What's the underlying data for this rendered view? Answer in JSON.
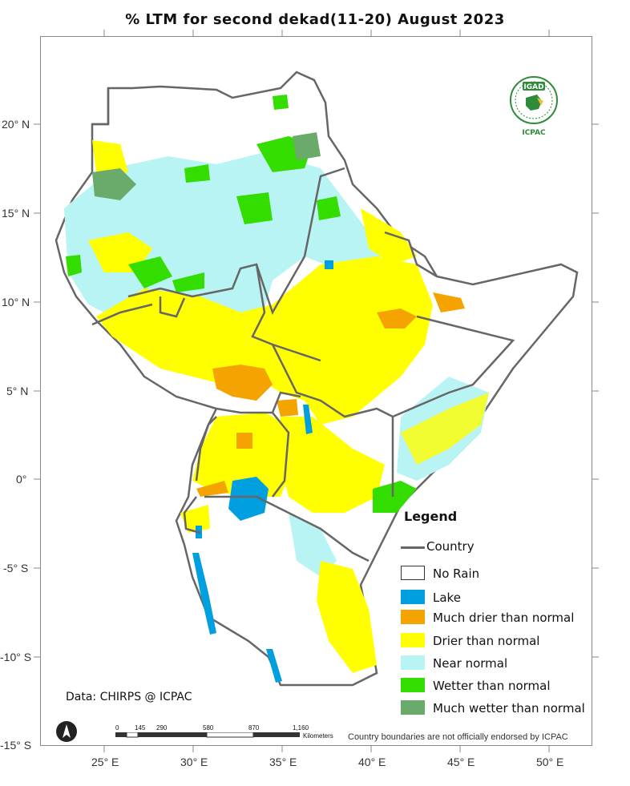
{
  "title": "% LTM   for   second dekad(11-20)  August  2023",
  "axes": {
    "lat_labels": [
      "20° N",
      "15° N",
      "10° N",
      "5° N",
      "0°",
      "-5° S",
      "-10° S",
      "-15° S"
    ],
    "lon_labels": [
      "25° E",
      "30° E",
      "35° E",
      "40° E",
      "45° E",
      "50° E"
    ]
  },
  "legend": {
    "title": "Legend",
    "items": [
      {
        "label": "Country",
        "type": "line",
        "color": "#666666"
      },
      {
        "label": "No Rain",
        "type": "box",
        "color": "#ffffff"
      },
      {
        "label": "Lake",
        "type": "box",
        "color": "#00a0e0"
      },
      {
        "label": "Much drier than normal",
        "type": "box",
        "color": "#f5a300"
      },
      {
        "label": "Drier than normal",
        "type": "box",
        "color": "#ffff00"
      },
      {
        "label": "Near normal",
        "type": "box",
        "color": "#b9f4f4"
      },
      {
        "label": "Wetter than normal",
        "type": "box",
        "color": "#33dd00"
      },
      {
        "label": "Much wetter than normal",
        "type": "box",
        "color": "#6aaa6a"
      }
    ]
  },
  "credit": "Data: CHIRPS @ ICPAC",
  "boundary_note": "Country boundaries are not officially endorsed by ICPAC",
  "scalebar": {
    "ticks": [
      "0",
      "145",
      "290",
      "580",
      "870",
      "1,160"
    ],
    "unit": "Kilometers"
  },
  "logo": {
    "top_text": "IGAD",
    "bottom_text": "ICPAC"
  },
  "icons": {
    "north_arrow": "north-arrow-icon"
  }
}
